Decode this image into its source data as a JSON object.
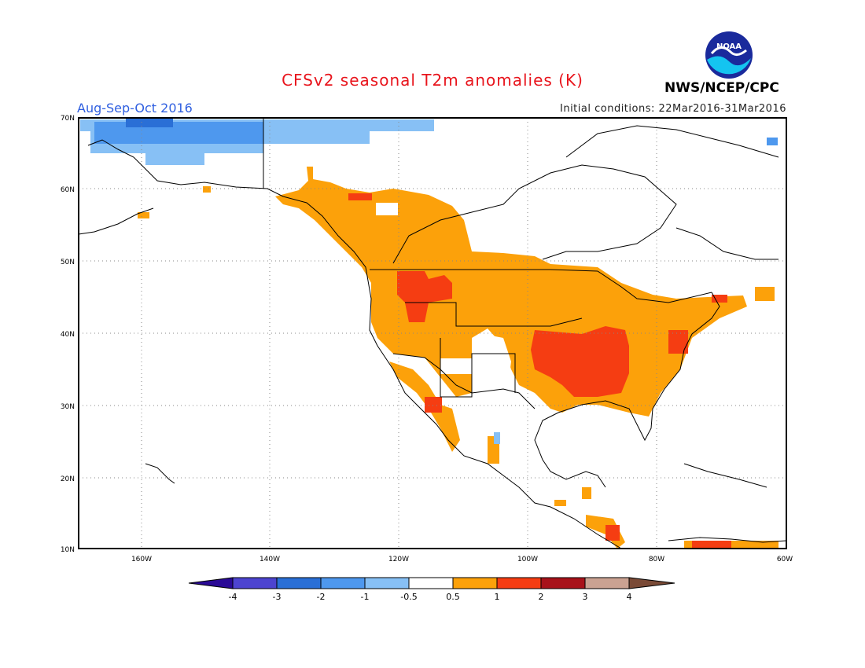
{
  "header": {
    "title": "CFSv2 seasonal T2m anomalies (K)",
    "season": "Aug-Sep-Oct 2016",
    "initial_conditions": "Initial conditions: 22Mar2016-31Mar2016",
    "agency": "NWS/NCEP/CPC",
    "logo_text": "NOAA"
  },
  "map": {
    "lat_labels": [
      "70N",
      "60N",
      "50N",
      "40N",
      "30N",
      "20N",
      "10N"
    ],
    "lon_labels": [
      "160W",
      "140W",
      "120W",
      "100W",
      "80W",
      "60W"
    ]
  },
  "legend": {
    "labels": [
      "-4",
      "-3",
      "-2",
      "-1",
      "-0.5",
      "0.5",
      "1",
      "2",
      "3",
      "4"
    ],
    "colors": [
      "#2a0a96",
      "#4d44d0",
      "#2a6fd6",
      "#4e98ee",
      "#87c0f5",
      "#ffffff",
      "#fca10a",
      "#f53d12",
      "#a8121a",
      "#caa292",
      "#7a4a36"
    ]
  },
  "colors": {
    "blue_dark": "#2a6fd6",
    "blue": "#4e98ee",
    "blue_light": "#87c0f5",
    "orange": "#fca10a",
    "red": "#f53d12",
    "deep_red": "#a8121a"
  }
}
